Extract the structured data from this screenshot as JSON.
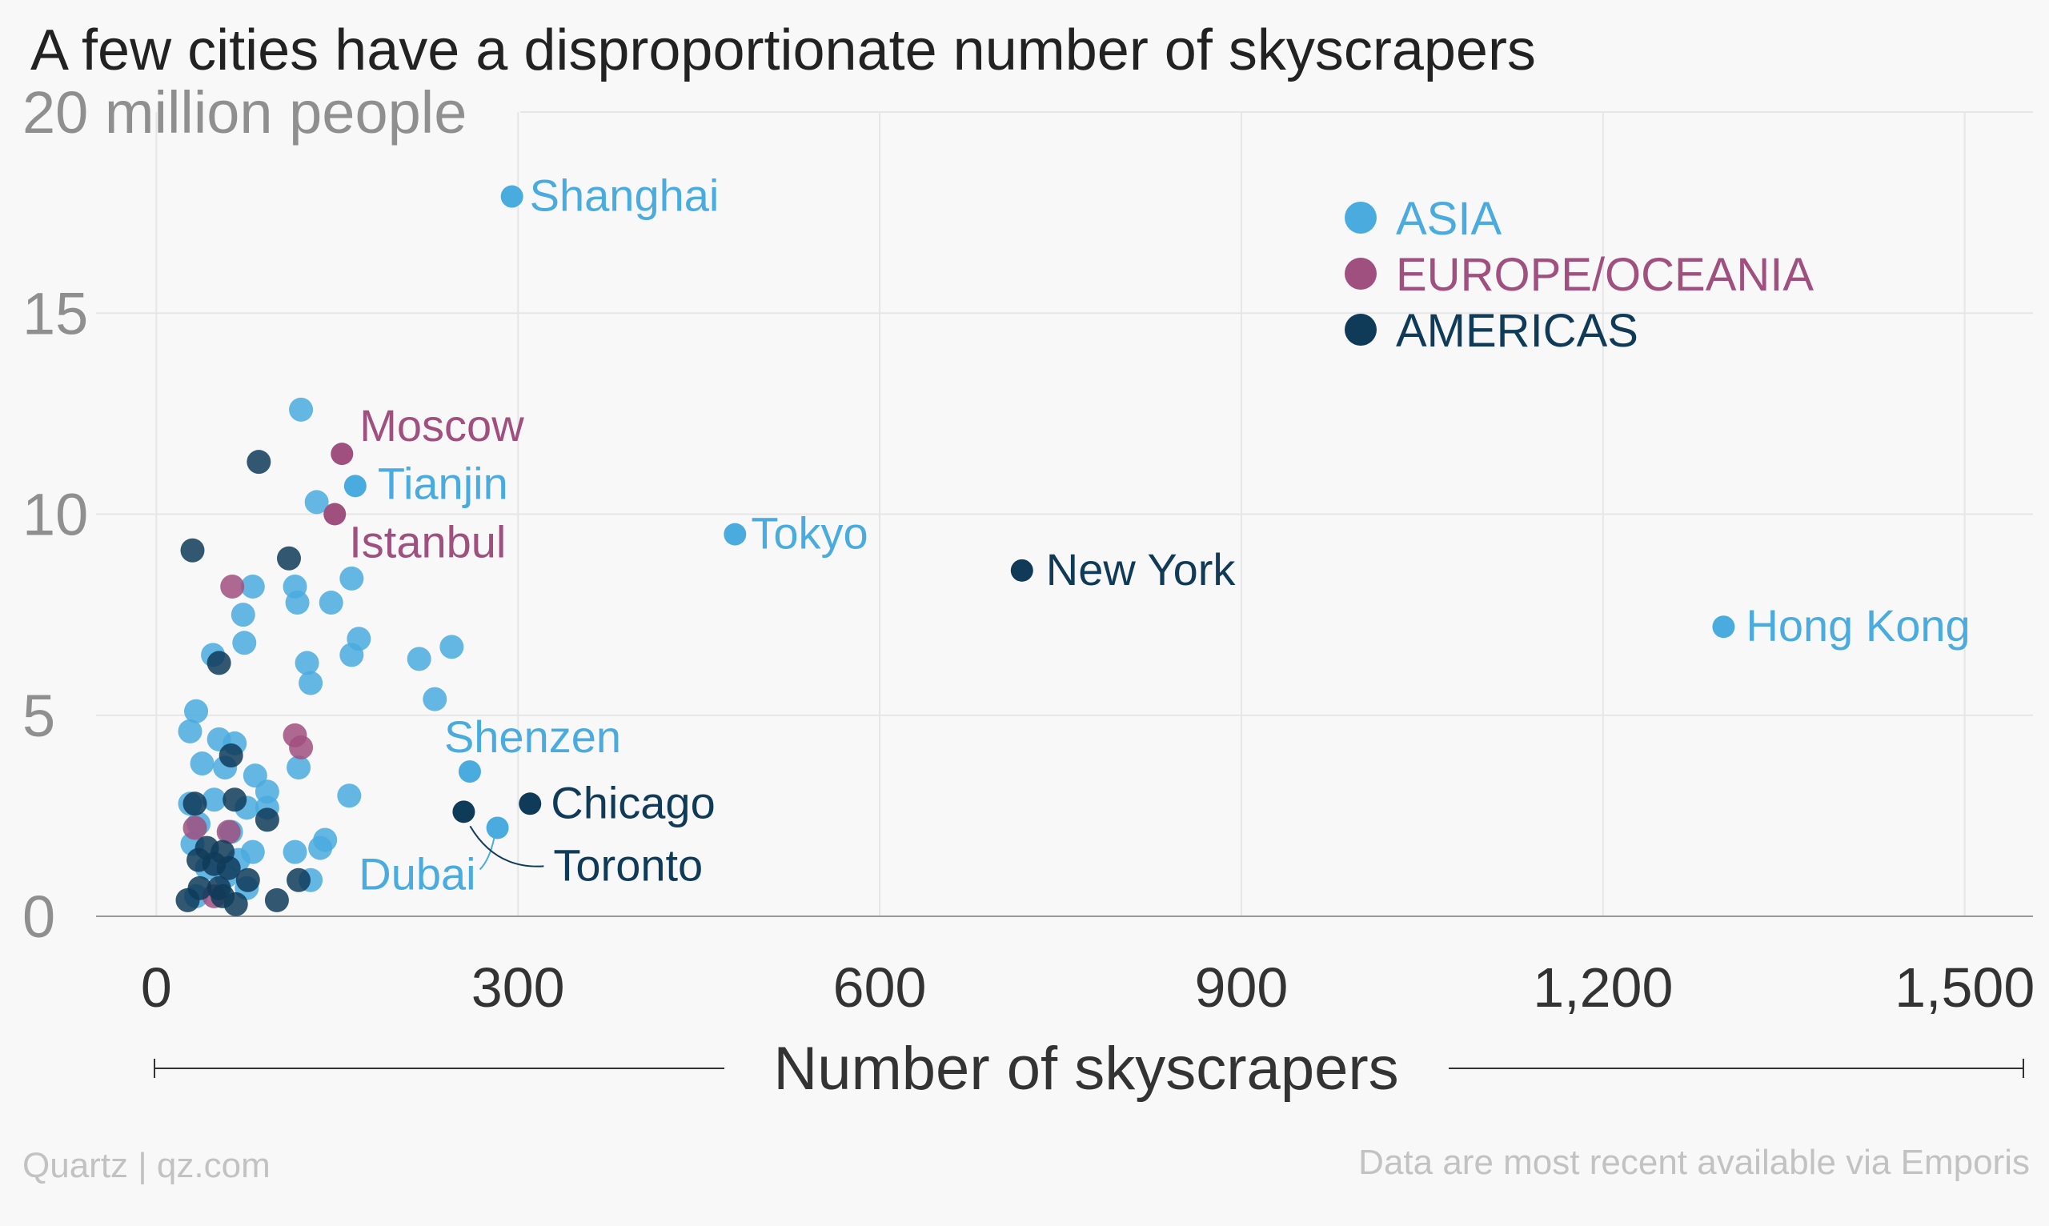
{
  "chart_data": {
    "type": "scatter",
    "title": "A few cities have a disproportionate number of skyscrapers",
    "xlabel": "Number of skyscrapers",
    "ylabel": "",
    "y_top_label": "20 million people",
    "xlim": [
      -50,
      1550
    ],
    "ylim": [
      0,
      20
    ],
    "x_ticks": [
      0,
      300,
      600,
      900,
      1200,
      1500
    ],
    "x_tick_labels": [
      "0",
      "300",
      "600",
      "900",
      "1,200",
      "1,500"
    ],
    "y_ticks": [
      0,
      5,
      10,
      15
    ],
    "y_tick_labels": [
      "0",
      "5",
      "10",
      "15"
    ],
    "grid": true,
    "legend_position": "top-right",
    "series": [
      {
        "name": "ASIA",
        "color": "#4aabdf",
        "points": [
          {
            "x": 295,
            "y": 17.9,
            "label": "Shanghai"
          },
          {
            "x": 1300,
            "y": 7.2,
            "label": "Hong Kong"
          },
          {
            "x": 480,
            "y": 9.5,
            "label": "Tokyo"
          },
          {
            "x": 165,
            "y": 10.7,
            "label": "Tianjin"
          },
          {
            "x": 260,
            "y": 3.6,
            "label": "Shenzen"
          },
          {
            "x": 283,
            "y": 2.2,
            "label": "Dubai"
          },
          {
            "x": 120,
            "y": 12.6
          },
          {
            "x": 133,
            "y": 10.3
          },
          {
            "x": 115,
            "y": 8.2
          },
          {
            "x": 80,
            "y": 8.2
          },
          {
            "x": 117,
            "y": 7.8
          },
          {
            "x": 72,
            "y": 7.5
          },
          {
            "x": 145,
            "y": 7.8
          },
          {
            "x": 162,
            "y": 8.4
          },
          {
            "x": 168,
            "y": 6.9
          },
          {
            "x": 162,
            "y": 6.5
          },
          {
            "x": 125,
            "y": 6.3
          },
          {
            "x": 128,
            "y": 5.8
          },
          {
            "x": 218,
            "y": 6.4
          },
          {
            "x": 245,
            "y": 6.7
          },
          {
            "x": 231,
            "y": 5.4
          },
          {
            "x": 73,
            "y": 6.8
          },
          {
            "x": 47,
            "y": 6.5
          },
          {
            "x": 33,
            "y": 5.1
          },
          {
            "x": 28,
            "y": 4.6
          },
          {
            "x": 52,
            "y": 4.4
          },
          {
            "x": 65,
            "y": 4.3
          },
          {
            "x": 38,
            "y": 3.8
          },
          {
            "x": 57,
            "y": 3.7
          },
          {
            "x": 82,
            "y": 3.5
          },
          {
            "x": 118,
            "y": 3.7
          },
          {
            "x": 92,
            "y": 3.1
          },
          {
            "x": 160,
            "y": 3.0
          },
          {
            "x": 28,
            "y": 2.8
          },
          {
            "x": 48,
            "y": 2.9
          },
          {
            "x": 75,
            "y": 2.7
          },
          {
            "x": 92,
            "y": 2.7
          },
          {
            "x": 140,
            "y": 1.9
          },
          {
            "x": 35,
            "y": 2.3
          },
          {
            "x": 62,
            "y": 2.1
          },
          {
            "x": 30,
            "y": 1.8
          },
          {
            "x": 80,
            "y": 1.6
          },
          {
            "x": 115,
            "y": 1.6
          },
          {
            "x": 136,
            "y": 1.7
          },
          {
            "x": 68,
            "y": 1.4
          },
          {
            "x": 42,
            "y": 1.2
          },
          {
            "x": 58,
            "y": 1.0
          },
          {
            "x": 128,
            "y": 0.9
          },
          {
            "x": 33,
            "y": 0.5
          },
          {
            "x": 75,
            "y": 0.7
          }
        ]
      },
      {
        "name": "EUROPE/OCEANIA",
        "color": "#a0507f",
        "points": [
          {
            "x": 154,
            "y": 11.5,
            "label": "Moscow"
          },
          {
            "x": 148,
            "y": 10.0,
            "label": "Istanbul"
          },
          {
            "x": 63,
            "y": 8.2
          },
          {
            "x": 115,
            "y": 4.5
          },
          {
            "x": 120,
            "y": 4.2
          },
          {
            "x": 60,
            "y": 2.1
          },
          {
            "x": 32,
            "y": 2.2
          },
          {
            "x": 48,
            "y": 0.5
          }
        ]
      },
      {
        "name": "AMERICAS",
        "color": "#0f3b59",
        "points": [
          {
            "x": 718,
            "y": 8.6,
            "label": "New York"
          },
          {
            "x": 310,
            "y": 2.8,
            "label": "Chicago"
          },
          {
            "x": 255,
            "y": 2.6,
            "label": "Toronto"
          },
          {
            "x": 85,
            "y": 11.3
          },
          {
            "x": 30,
            "y": 9.1
          },
          {
            "x": 110,
            "y": 8.9
          },
          {
            "x": 52,
            "y": 6.3
          },
          {
            "x": 62,
            "y": 4.0
          },
          {
            "x": 32,
            "y": 2.8
          },
          {
            "x": 65,
            "y": 2.9
          },
          {
            "x": 92,
            "y": 2.4
          },
          {
            "x": 42,
            "y": 1.7
          },
          {
            "x": 55,
            "y": 1.6
          },
          {
            "x": 35,
            "y": 1.4
          },
          {
            "x": 48,
            "y": 1.3
          },
          {
            "x": 60,
            "y": 1.2
          },
          {
            "x": 76,
            "y": 0.9
          },
          {
            "x": 118,
            "y": 0.9
          },
          {
            "x": 36,
            "y": 0.7
          },
          {
            "x": 52,
            "y": 0.7
          },
          {
            "x": 26,
            "y": 0.4
          },
          {
            "x": 55,
            "y": 0.5
          },
          {
            "x": 66,
            "y": 0.3
          },
          {
            "x": 100,
            "y": 0.4
          }
        ]
      }
    ]
  },
  "footer": {
    "left": "Quartz | qz.com",
    "right": "Data are most recent available via Emporis"
  }
}
